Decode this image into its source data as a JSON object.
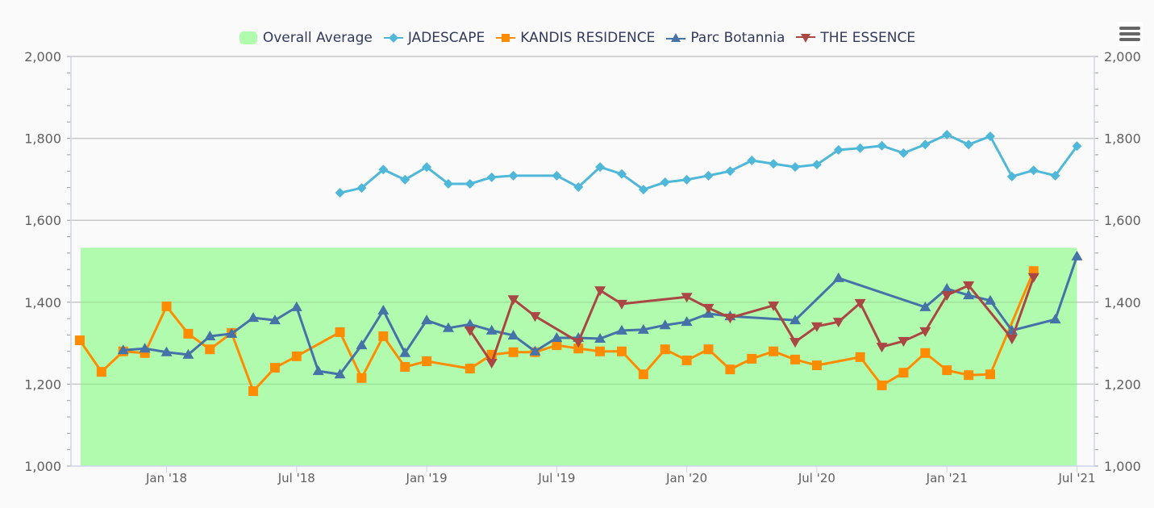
{
  "chart_data": {
    "type": "line",
    "title": "",
    "xlabel": "",
    "ylabel": "",
    "ylim": [
      1000,
      2000
    ],
    "yticks": [
      "1,000",
      "1,200",
      "1,400",
      "1,600",
      "1,800",
      "2,000"
    ],
    "ytick_values": [
      1000,
      1200,
      1400,
      1600,
      1800,
      2000
    ],
    "right_axis_mirror": true,
    "x_start": "2017-09",
    "x_end": "2021-07",
    "xticks": [
      {
        "label": "Jan '18",
        "month": 4
      },
      {
        "label": "Jul '18",
        "month": 10
      },
      {
        "label": "Jan '19",
        "month": 16
      },
      {
        "label": "Jul '19",
        "month": 22
      },
      {
        "label": "Jan '20",
        "month": 28
      },
      {
        "label": "Jul '20",
        "month": 34
      },
      {
        "label": "Jan '21",
        "month": 40
      },
      {
        "label": "Jul '21",
        "month": 46
      }
    ],
    "month_index_note": "month 0 = Sep 2017",
    "grid": true,
    "legend_position": "top-center",
    "band": {
      "name": "Overall Average",
      "type": "area-range",
      "from_month": 0,
      "to_month": 46,
      "low": 1000,
      "high": 1533,
      "color": "#b0fbad"
    },
    "series": [
      {
        "name": "JADESCAPE",
        "color": "#4fb8d8",
        "marker": "diamond",
        "points": [
          [
            12,
            1667
          ],
          [
            13,
            1679
          ],
          [
            14,
            1724
          ],
          [
            15,
            1699
          ],
          [
            16,
            1730
          ],
          [
            17,
            1689
          ],
          [
            18,
            1689
          ],
          [
            19,
            1705
          ],
          [
            20,
            1709
          ],
          [
            22,
            1709
          ],
          [
            23,
            1681
          ],
          [
            24,
            1730
          ],
          [
            25,
            1713
          ],
          [
            26,
            1675
          ],
          [
            27,
            1693
          ],
          [
            28,
            1699
          ],
          [
            29,
            1709
          ],
          [
            30,
            1720
          ],
          [
            31,
            1746
          ],
          [
            32,
            1738
          ],
          [
            33,
            1730
          ],
          [
            34,
            1736
          ],
          [
            35,
            1772
          ],
          [
            36,
            1776
          ],
          [
            37,
            1782
          ],
          [
            38,
            1764
          ],
          [
            39,
            1785
          ],
          [
            40,
            1809
          ],
          [
            41,
            1785
          ],
          [
            42,
            1805
          ],
          [
            43,
            1707
          ],
          [
            44,
            1722
          ],
          [
            45,
            1709
          ],
          [
            46,
            1781
          ]
        ]
      },
      {
        "name": "KANDIS RESIDENCE",
        "color": "#ff8c00",
        "marker": "square",
        "points": [
          [
            0,
            1307
          ],
          [
            1,
            1230
          ],
          [
            2,
            1280
          ],
          [
            3,
            1276
          ],
          [
            4,
            1390
          ],
          [
            5,
            1323
          ],
          [
            6,
            1285
          ],
          [
            7,
            1325
          ],
          [
            8,
            1183
          ],
          [
            9,
            1240
          ],
          [
            10,
            1268
          ],
          [
            12,
            1327
          ],
          [
            13,
            1215
          ],
          [
            14,
            1317
          ],
          [
            15,
            1242
          ],
          [
            16,
            1256
          ],
          [
            18,
            1238
          ],
          [
            19,
            1272
          ],
          [
            20,
            1278
          ],
          [
            21,
            1278
          ],
          [
            22,
            1295
          ],
          [
            23,
            1287
          ],
          [
            24,
            1280
          ],
          [
            25,
            1280
          ],
          [
            26,
            1224
          ],
          [
            27,
            1285
          ],
          [
            28,
            1258
          ],
          [
            29,
            1285
          ],
          [
            30,
            1236
          ],
          [
            31,
            1262
          ],
          [
            32,
            1280
          ],
          [
            33,
            1260
          ],
          [
            34,
            1246
          ],
          [
            36,
            1266
          ],
          [
            37,
            1197
          ],
          [
            38,
            1228
          ],
          [
            39,
            1276
          ],
          [
            40,
            1234
          ],
          [
            41,
            1222
          ],
          [
            42,
            1224
          ],
          [
            44,
            1476
          ]
        ]
      },
      {
        "name": "Parc Botannia",
        "color": "#4572a7",
        "marker": "triangle",
        "points": [
          [
            2,
            1283
          ],
          [
            3,
            1287
          ],
          [
            4,
            1278
          ],
          [
            5,
            1272
          ],
          [
            6,
            1317
          ],
          [
            7,
            1323
          ],
          [
            8,
            1362
          ],
          [
            9,
            1356
          ],
          [
            10,
            1388
          ],
          [
            11,
            1232
          ],
          [
            12,
            1224
          ],
          [
            13,
            1295
          ],
          [
            14,
            1380
          ],
          [
            15,
            1276
          ],
          [
            16,
            1356
          ],
          [
            17,
            1337
          ],
          [
            18,
            1346
          ],
          [
            19,
            1331
          ],
          [
            20,
            1319
          ],
          [
            21,
            1280
          ],
          [
            22,
            1313
          ],
          [
            23,
            1313
          ],
          [
            24,
            1311
          ],
          [
            25,
            1331
          ],
          [
            26,
            1333
          ],
          [
            27,
            1344
          ],
          [
            28,
            1352
          ],
          [
            29,
            1372
          ],
          [
            30,
            1366
          ],
          [
            33,
            1356
          ],
          [
            35,
            1459
          ],
          [
            39,
            1388
          ],
          [
            40,
            1433
          ],
          [
            41,
            1417
          ],
          [
            42,
            1404
          ],
          [
            43,
            1331
          ],
          [
            45,
            1358
          ],
          [
            46,
            1512
          ]
        ]
      },
      {
        "name": "THE ESSENCE",
        "color": "#aa4643",
        "marker": "triangle-down",
        "points": [
          [
            18,
            1331
          ],
          [
            19,
            1252
          ],
          [
            20,
            1407
          ],
          [
            21,
            1366
          ],
          [
            23,
            1303
          ],
          [
            24,
            1429
          ],
          [
            25,
            1396
          ],
          [
            28,
            1413
          ],
          [
            29,
            1386
          ],
          [
            30,
            1362
          ],
          [
            32,
            1392
          ],
          [
            33,
            1303
          ],
          [
            34,
            1341
          ],
          [
            35,
            1352
          ],
          [
            36,
            1398
          ],
          [
            37,
            1291
          ],
          [
            38,
            1305
          ],
          [
            39,
            1329
          ],
          [
            40,
            1417
          ],
          [
            41,
            1441
          ],
          [
            43,
            1311
          ],
          [
            44,
            1461
          ]
        ]
      }
    ]
  },
  "legend": {
    "items": [
      {
        "label": "Overall Average",
        "color": "#b0fbad",
        "icon": "rounded-square-icon"
      },
      {
        "label": "JADESCAPE",
        "color": "#4fb8d8",
        "icon": "diamond-icon"
      },
      {
        "label": "KANDIS RESIDENCE",
        "color": "#ff8c00",
        "icon": "square-icon"
      },
      {
        "label": "Parc Botannia",
        "color": "#4572a7",
        "icon": "triangle-icon"
      },
      {
        "label": "THE ESSENCE",
        "color": "#aa4643",
        "icon": "triangle-down-icon"
      }
    ]
  },
  "menu": {
    "icon": "hamburger-menu-icon"
  }
}
